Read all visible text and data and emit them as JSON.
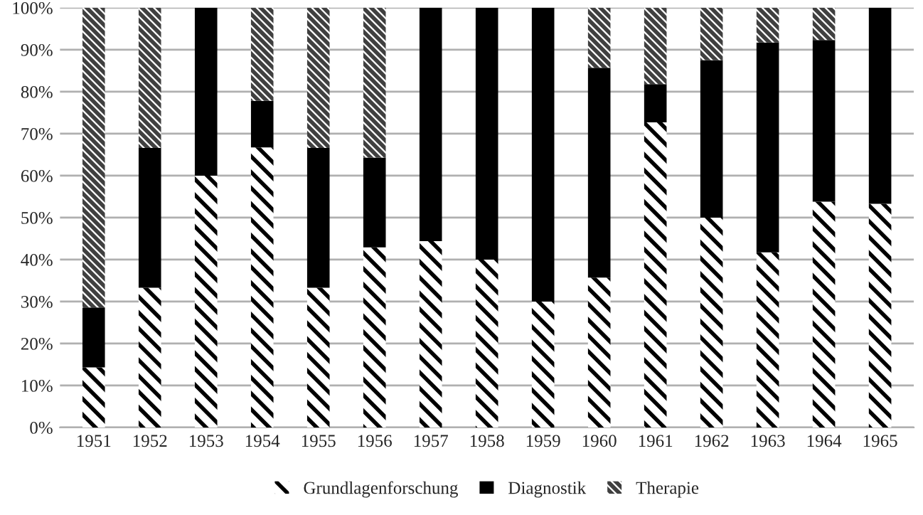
{
  "chart_data": {
    "type": "bar",
    "stacked": true,
    "categories": [
      "1951",
      "1952",
      "1953",
      "1954",
      "1955",
      "1956",
      "1957",
      "1958",
      "1959",
      "1960",
      "1961",
      "1962",
      "1963",
      "1964",
      "1965"
    ],
    "series": [
      {
        "name": "Grundlagenforschung",
        "color": "#000000",
        "values": [
          14.3,
          33.3,
          60,
          66.7,
          33.3,
          42.9,
          44.4,
          40,
          30,
          35.7,
          72.7,
          50,
          41.7,
          53.8,
          53.3
        ]
      },
      {
        "name": "Diagnostik",
        "color": "#000000",
        "values": [
          14.3,
          33.3,
          40,
          11.1,
          33.3,
          21.4,
          55.6,
          60,
          70,
          50,
          9.1,
          37.5,
          50,
          38.5,
          46.7
        ]
      },
      {
        "name": "Therapie",
        "color": "#404040",
        "values": [
          71.4,
          33.4,
          0,
          22.2,
          33.4,
          35.7,
          0,
          0,
          0,
          14.3,
          18.2,
          12.5,
          8.3,
          7.7,
          0
        ]
      }
    ],
    "ylim": [
      0,
      100
    ],
    "yticks": [
      {
        "value": 0,
        "label": "0%"
      },
      {
        "value": 10,
        "label": "10%"
      },
      {
        "value": 20,
        "label": "20%"
      },
      {
        "value": 30,
        "label": "30%"
      },
      {
        "value": 40,
        "label": "40%"
      },
      {
        "value": 50,
        "label": "50%"
      },
      {
        "value": 60,
        "label": "60%"
      },
      {
        "value": 70,
        "label": "70%"
      },
      {
        "value": 80,
        "label": "80%"
      },
      {
        "value": 90,
        "label": "90%"
      },
      {
        "value": 100,
        "label": "100%"
      }
    ],
    "grid": "y",
    "legend": "bottom"
  }
}
